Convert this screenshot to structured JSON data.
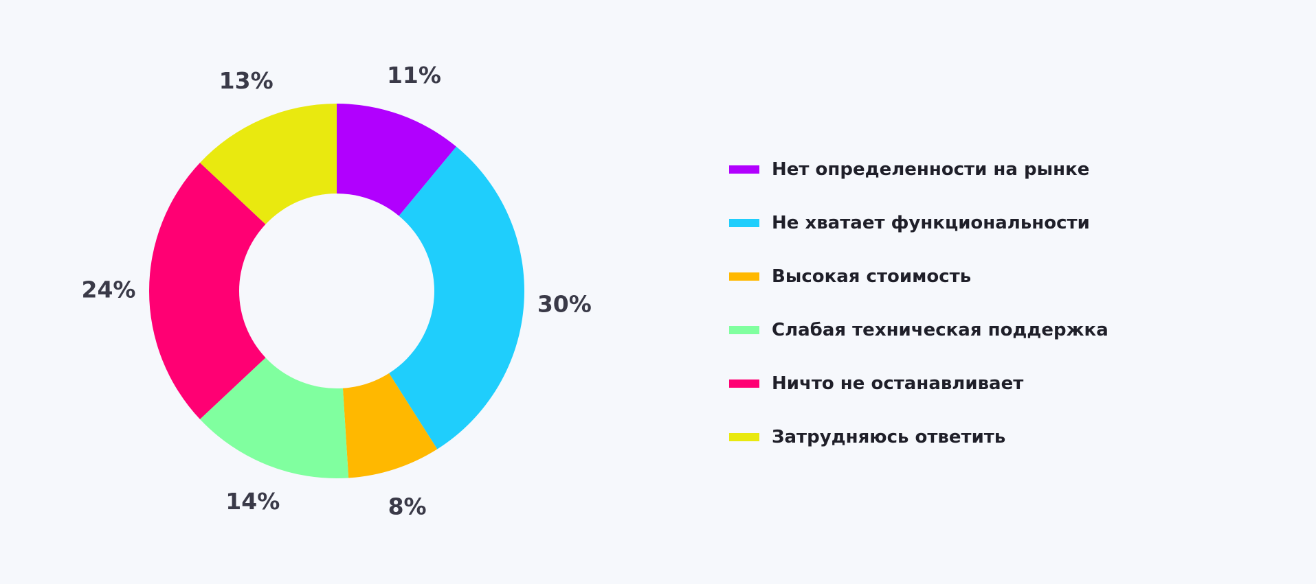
{
  "chart_data": {
    "type": "pie",
    "variant": "donut",
    "title": "",
    "categories": [
      "Нет определенности на рынке",
      "Не хватает функциональности",
      "Высокая стоимость",
      "Слабая техническая поддержка",
      "Ничто не останавливает",
      "Затрудняюсь ответить"
    ],
    "values": [
      11,
      30,
      8,
      14,
      24,
      13
    ],
    "value_labels": [
      "11%",
      "30%",
      "8%",
      "14%",
      "24%",
      "13%"
    ],
    "colors": [
      "#b100fe",
      "#1fcefc",
      "#ffb800",
      "#80ff9f",
      "#ff0073",
      "#e9e90f"
    ],
    "legend_position": "right"
  }
}
